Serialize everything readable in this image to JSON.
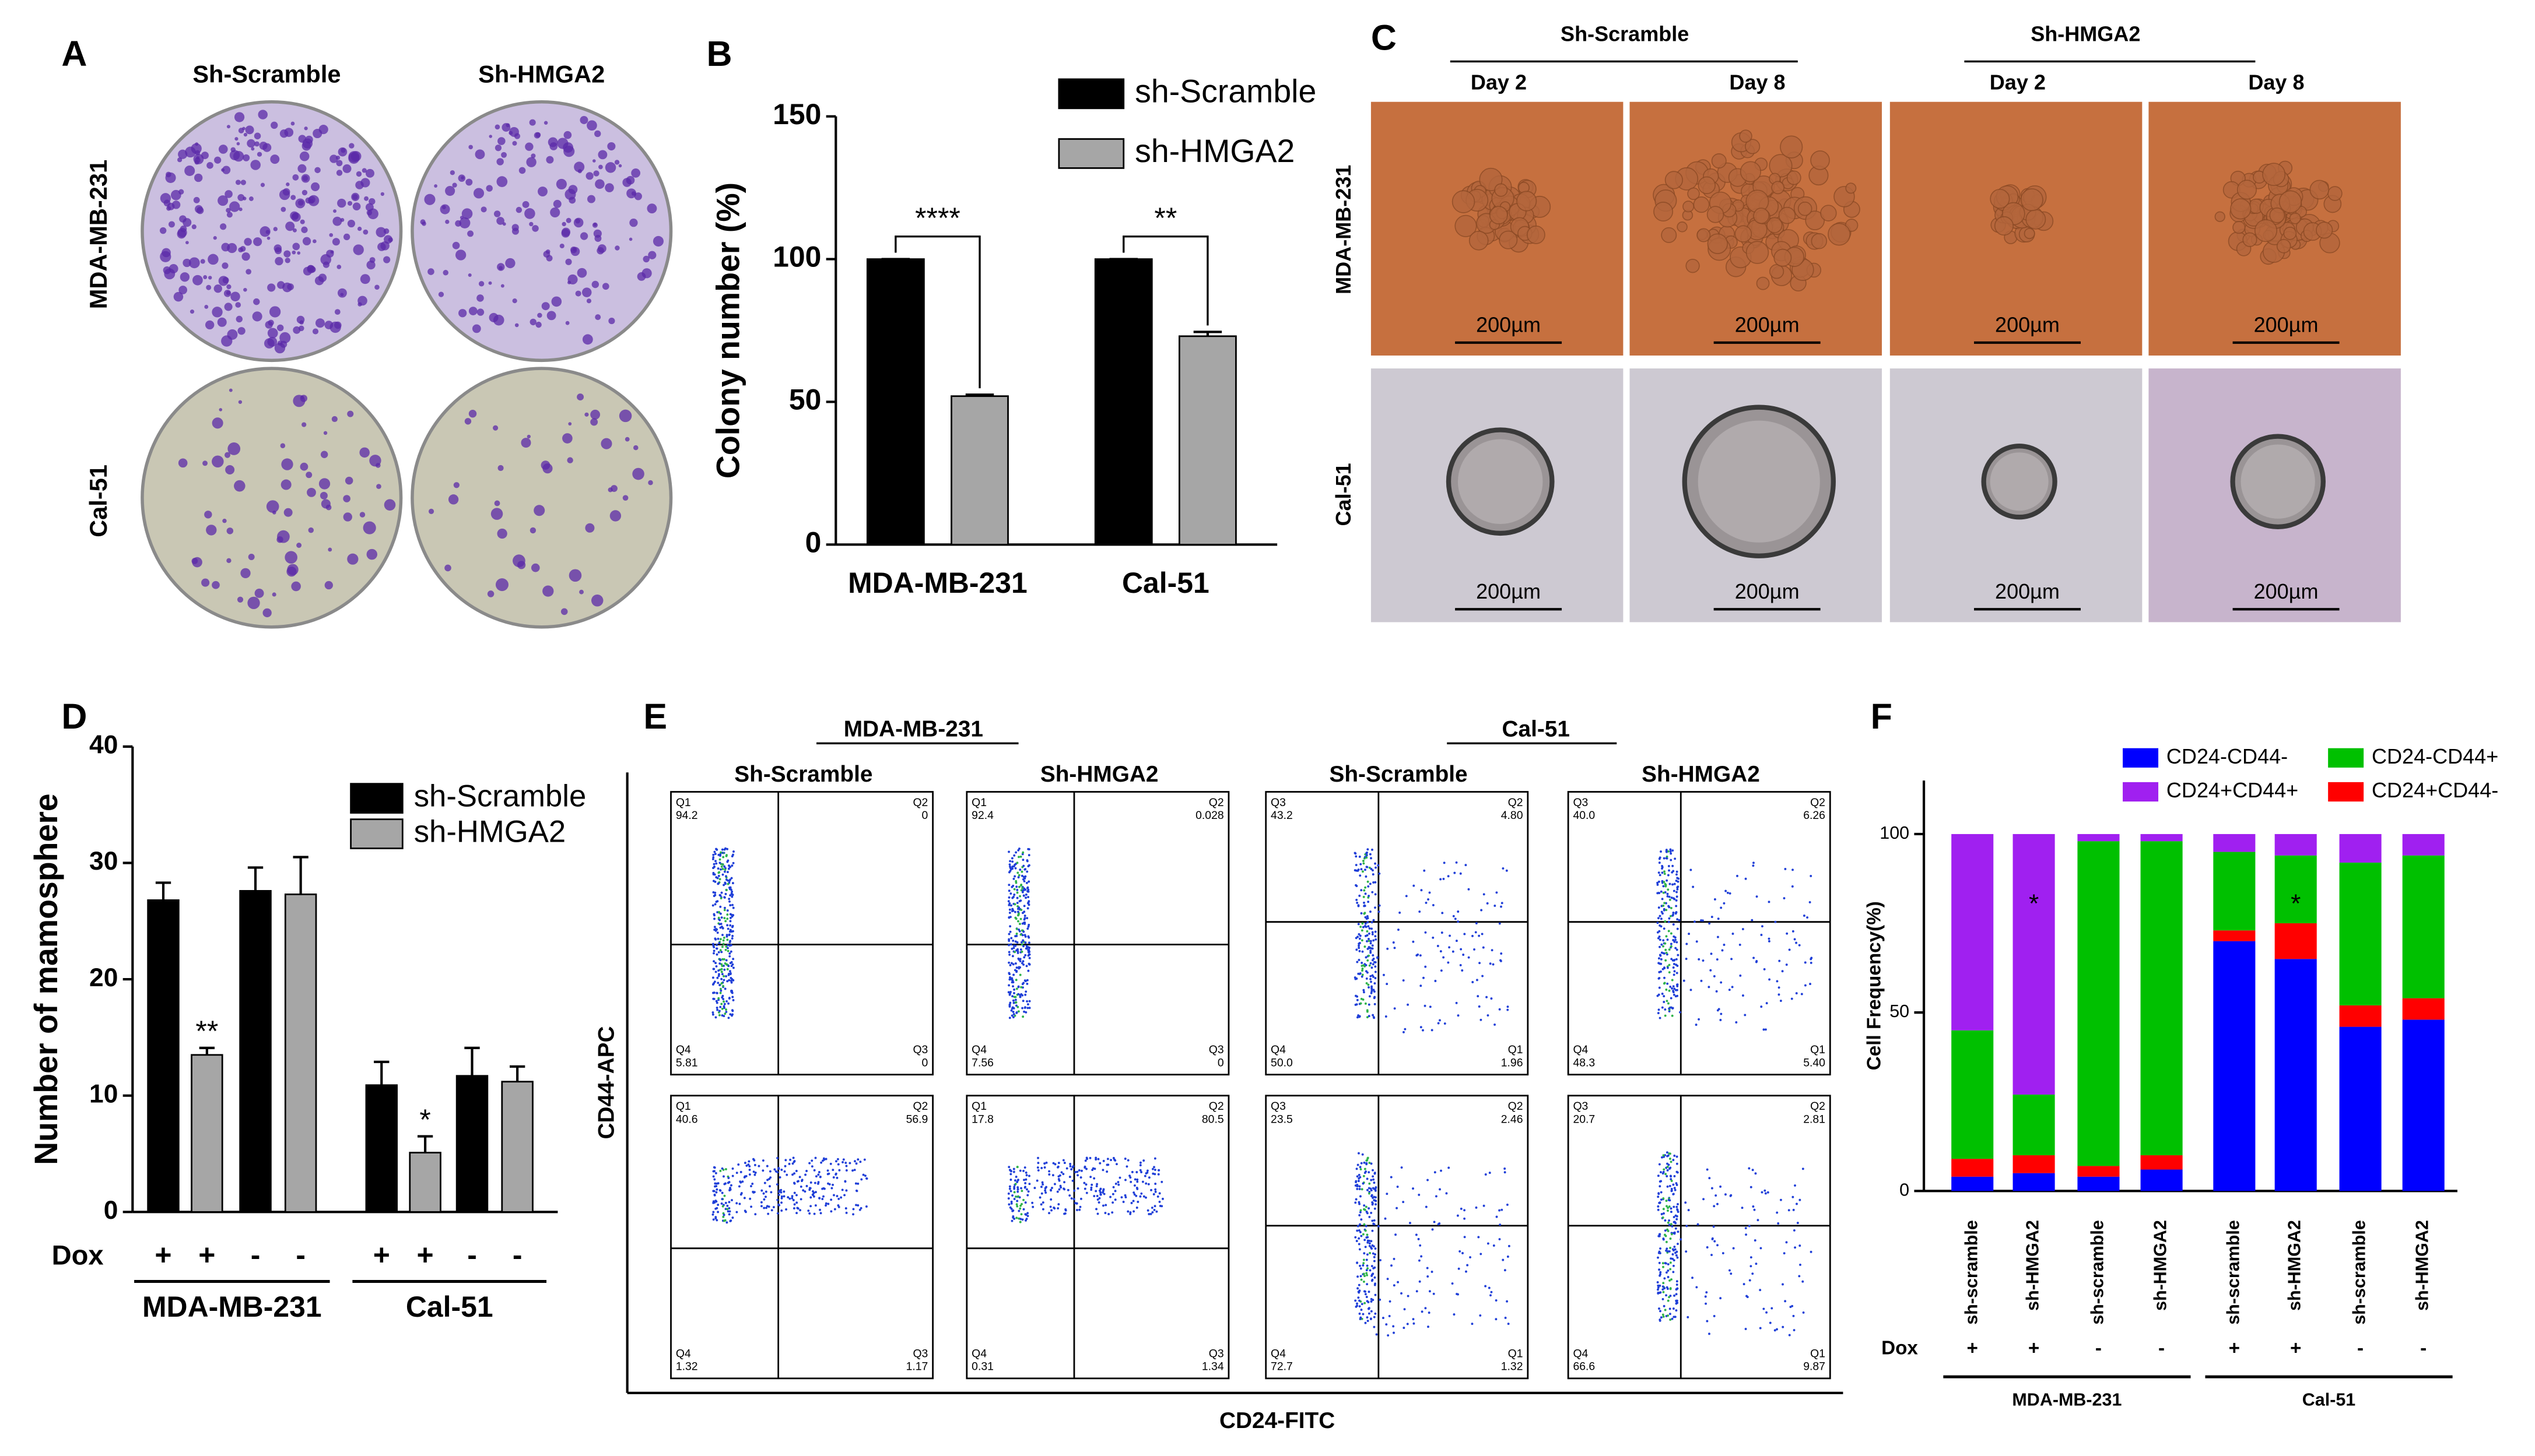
{
  "panel_a": {
    "label": "A",
    "columns": [
      "Sh-Scramble",
      "Sh-HMGA2"
    ],
    "rows": [
      "MDA-MB-231",
      "Cal-51"
    ]
  },
  "panel_c": {
    "label": "C",
    "groups": [
      "Sh-Scramble",
      "Sh-HMGA2"
    ],
    "days": [
      "Day 2",
      "Day 8",
      "Day 2",
      "Day 8"
    ],
    "rows": [
      "MDA-MB-231",
      "Cal-51"
    ],
    "scale_bars": [
      "200µm",
      "200µm",
      "200µm",
      "200µm",
      "200µm",
      "200µm",
      "200µm",
      "200µm"
    ]
  },
  "panel_e": {
    "label": "E",
    "groups": [
      "MDA-MB-231",
      "Cal-51"
    ],
    "columns": [
      "Sh-Scramble",
      "Sh-HMGA2",
      "Sh-Scramble",
      "Sh-HMGA2"
    ],
    "ylabel": "CD44-APC",
    "xlabel": "CD24-FITC",
    "plots": [
      {
        "quadrants": [
          [
            "Q1",
            "94.2"
          ],
          [
            "Q2",
            "0"
          ],
          [
            "Q4",
            "5.81"
          ],
          [
            "Q3",
            "0"
          ]
        ]
      },
      {
        "quadrants": [
          [
            "Q1",
            "92.4"
          ],
          [
            "Q2",
            "0.028"
          ],
          [
            "Q4",
            "7.56"
          ],
          [
            "Q3",
            "0"
          ]
        ]
      },
      {
        "quadrants": [
          [
            "Q3",
            "43.2"
          ],
          [
            "Q2",
            "4.80"
          ],
          [
            "Q4",
            "50.0"
          ],
          [
            "Q1",
            "1.96"
          ]
        ]
      },
      {
        "quadrants": [
          [
            "Q3",
            "40.0"
          ],
          [
            "Q2",
            "6.26"
          ],
          [
            "Q4",
            "48.3"
          ],
          [
            "Q1",
            "5.40"
          ]
        ]
      },
      {
        "quadrants": [
          [
            "Q1",
            "40.6"
          ],
          [
            "Q2",
            "56.9"
          ],
          [
            "Q4",
            "1.32"
          ],
          [
            "Q3",
            "1.17"
          ]
        ]
      },
      {
        "quadrants": [
          [
            "Q1",
            "17.8"
          ],
          [
            "Q2",
            "80.5"
          ],
          [
            "Q4",
            "0.31"
          ],
          [
            "Q3",
            "1.34"
          ]
        ]
      },
      {
        "quadrants": [
          [
            "Q3",
            "23.5"
          ],
          [
            "Q2",
            "2.46"
          ],
          [
            "Q4",
            "72.7"
          ],
          [
            "Q1",
            "1.32"
          ]
        ]
      },
      {
        "quadrants": [
          [
            "Q3",
            "20.7"
          ],
          [
            "Q2",
            "2.81"
          ],
          [
            "Q4",
            "66.6"
          ],
          [
            "Q1",
            "9.87"
          ]
        ]
      }
    ]
  },
  "chart_data": [
    {
      "type": "bar",
      "label": "B",
      "ylabel": "Colony number (%)",
      "categories": [
        "MDA-MB-231",
        "Cal-51"
      ],
      "series": [
        {
          "name": "sh-Scramble",
          "color": "#000000",
          "values": [
            100,
            100
          ],
          "errors": [
            0,
            0
          ]
        },
        {
          "name": "sh-HMGA2",
          "color": "#a6a6a6",
          "values": [
            52,
            73
          ],
          "errors": [
            0.5,
            1.5
          ]
        }
      ],
      "significance": [
        "****",
        "**"
      ],
      "ylim": [
        0,
        150
      ],
      "yticks": [
        0,
        50,
        100,
        150
      ]
    },
    {
      "type": "bar",
      "label": "D",
      "ylabel": "Number of mamosphere",
      "category_title": "Dox",
      "categories": [
        "+",
        "+",
        "-",
        "-",
        "+",
        "+",
        "-",
        "-"
      ],
      "groups": [
        "MDA-MB-231",
        "Cal-51"
      ],
      "series": [
        {
          "name": "sh-Scramble",
          "color": "#000000",
          "values": [
            26.8,
            null,
            27.6,
            null,
            10.9,
            null,
            11.7,
            null
          ],
          "errors": [
            1.5,
            null,
            2,
            null,
            2,
            null,
            2.4,
            null
          ]
        },
        {
          "name": "sh-HMGA2",
          "color": "#a6a6a6",
          "values": [
            null,
            13.5,
            null,
            27.3,
            null,
            5.1,
            null,
            11.2
          ],
          "errors": [
            null,
            0.6,
            null,
            3.2,
            null,
            1.4,
            null,
            1.3
          ]
        }
      ],
      "significance": [
        null,
        "**",
        null,
        null,
        null,
        "*",
        null,
        null
      ],
      "ylim": [
        0,
        40
      ],
      "yticks": [
        0,
        10,
        20,
        30,
        40
      ]
    },
    {
      "type": "stacked_bar",
      "label": "F",
      "ylabel": "Cell Frequency(%)",
      "categories": [
        "sh-scramble",
        "sh-HMGA2",
        "sh-scramble",
        "sh-HMGA2",
        "sh-scramble",
        "sh-HMGA2",
        "sh-scramble",
        "sh-HMGA2"
      ],
      "category_title": "Dox",
      "dox": [
        "+",
        "+",
        "-",
        "-",
        "+",
        "+",
        "-",
        "-"
      ],
      "groups": [
        "MDA-MB-231",
        "Cal-51"
      ],
      "series": [
        {
          "name": "CD24-CD44-",
          "color": "#0000ff",
          "values": [
            4,
            5,
            4,
            6,
            70,
            65,
            46,
            48
          ]
        },
        {
          "name": "CD24+CD44-",
          "color": "#ff0000",
          "values": [
            5,
            5,
            3,
            4,
            3,
            10,
            6,
            6
          ]
        },
        {
          "name": "CD24-CD44+",
          "color": "#00c000",
          "values": [
            36,
            17,
            91,
            88,
            22,
            19,
            40,
            40
          ]
        },
        {
          "name": "CD24+CD44+",
          "color": "#a020f0",
          "values": [
            55,
            73,
            2,
            2,
            5,
            6,
            8,
            6
          ]
        }
      ],
      "significance": [
        null,
        "*",
        null,
        null,
        null,
        "*",
        null,
        null
      ],
      "ylim": [
        0,
        115
      ],
      "yticks": [
        0,
        50,
        100
      ]
    }
  ]
}
